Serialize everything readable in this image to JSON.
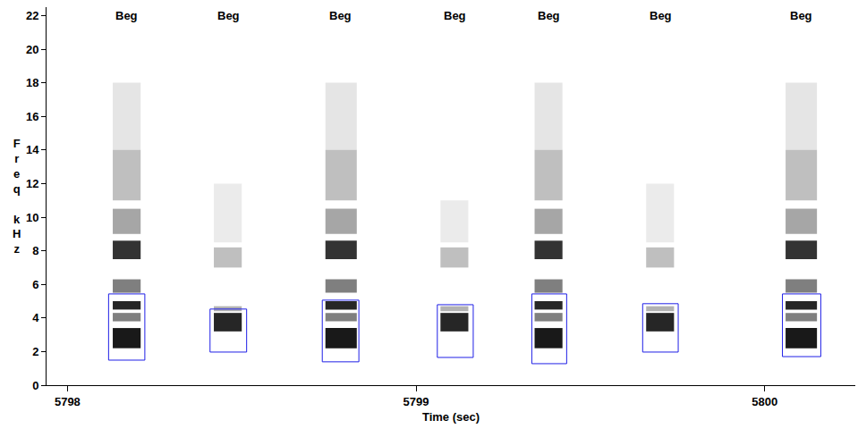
{
  "chart_data": {
    "type": "spectrogram",
    "x_label": "Time (sec)",
    "y_label": "Freq kHz",
    "xlim": [
      5797.94,
      5800.26
    ],
    "ylim": [
      0,
      22.5
    ],
    "xticks": [
      5798,
      5799,
      5800
    ],
    "yticks": [
      0,
      2,
      4,
      6,
      8,
      10,
      12,
      14,
      16,
      18,
      20,
      22
    ],
    "color": "#1f1fe6",
    "calls": [
      {
        "label": "Beg",
        "box": {
          "x": [
            5798.118,
            5798.222
          ],
          "y": [
            1.49,
            5.43
          ]
        },
        "energy": {
          "x": [
            5798.13,
            5798.21
          ],
          "bands": [
            [
              2.2,
              3.4,
              0.9
            ],
            [
              3.8,
              4.3,
              0.5
            ],
            [
              4.5,
              5.0,
              0.85
            ],
            [
              5.5,
              6.3,
              0.5
            ],
            [
              7.5,
              8.6,
              0.8
            ],
            [
              9.0,
              10.5,
              0.35
            ],
            [
              11.0,
              14.0,
              0.25
            ],
            [
              14.0,
              18.0,
              0.1
            ]
          ]
        }
      },
      {
        "label": "Beg",
        "box": {
          "x": [
            5798.409,
            5798.514
          ],
          "y": [
            1.97,
            4.53
          ]
        },
        "energy": {
          "x": [
            5798.42,
            5798.5
          ],
          "bands": [
            [
              3.2,
              4.3,
              0.85
            ],
            [
              4.4,
              4.7,
              0.3
            ],
            [
              7.0,
              8.2,
              0.25
            ],
            [
              8.5,
              12.0,
              0.08
            ]
          ]
        }
      },
      {
        "label": "Beg",
        "box": {
          "x": [
            5798.731,
            5798.836
          ],
          "y": [
            1.39,
            5.06
          ]
        },
        "energy": {
          "x": [
            5798.74,
            5798.83
          ],
          "bands": [
            [
              2.2,
              3.4,
              0.9
            ],
            [
              3.8,
              4.3,
              0.5
            ],
            [
              4.5,
              5.0,
              0.85
            ],
            [
              5.5,
              6.3,
              0.5
            ],
            [
              7.5,
              8.6,
              0.8
            ],
            [
              9.0,
              10.5,
              0.35
            ],
            [
              11.0,
              14.0,
              0.25
            ],
            [
              14.0,
              18.0,
              0.1
            ]
          ]
        }
      },
      {
        "label": "Beg",
        "box": {
          "x": [
            5799.061,
            5799.164
          ],
          "y": [
            1.65,
            4.79
          ]
        },
        "energy": {
          "x": [
            5799.07,
            5799.15
          ],
          "bands": [
            [
              3.2,
              4.3,
              0.85
            ],
            [
              4.4,
              4.7,
              0.3
            ],
            [
              7.0,
              8.2,
              0.25
            ],
            [
              8.5,
              11.0,
              0.08
            ]
          ]
        }
      },
      {
        "label": "Beg",
        "box": {
          "x": [
            5799.332,
            5799.432
          ],
          "y": [
            1.28,
            5.43
          ]
        },
        "energy": {
          "x": [
            5799.34,
            5799.42
          ],
          "bands": [
            [
              2.2,
              3.4,
              0.9
            ],
            [
              3.8,
              4.3,
              0.5
            ],
            [
              4.5,
              5.0,
              0.85
            ],
            [
              5.5,
              6.3,
              0.5
            ],
            [
              7.5,
              8.6,
              0.8
            ],
            [
              9.0,
              10.5,
              0.35
            ],
            [
              11.0,
              14.0,
              0.25
            ],
            [
              14.0,
              18.0,
              0.1
            ]
          ]
        }
      },
      {
        "label": "Beg",
        "box": {
          "x": [
            5799.65,
            5799.752
          ],
          "y": [
            1.97,
            4.85
          ]
        },
        "energy": {
          "x": [
            5799.66,
            5799.74
          ],
          "bands": [
            [
              3.2,
              4.3,
              0.85
            ],
            [
              4.4,
              4.7,
              0.3
            ],
            [
              7.0,
              8.2,
              0.25
            ],
            [
              8.5,
              12.0,
              0.08
            ]
          ]
        }
      },
      {
        "label": "Beg",
        "box": {
          "x": [
            5800.051,
            5800.161
          ],
          "y": [
            1.7,
            5.43
          ]
        },
        "energy": {
          "x": [
            5800.06,
            5800.15
          ],
          "bands": [
            [
              2.2,
              3.4,
              0.9
            ],
            [
              3.8,
              4.3,
              0.5
            ],
            [
              4.5,
              5.0,
              0.85
            ],
            [
              5.5,
              6.3,
              0.5
            ],
            [
              7.5,
              8.6,
              0.8
            ],
            [
              9.0,
              10.5,
              0.35
            ],
            [
              11.0,
              14.0,
              0.25
            ],
            [
              14.0,
              18.0,
              0.1
            ]
          ]
        }
      }
    ]
  }
}
